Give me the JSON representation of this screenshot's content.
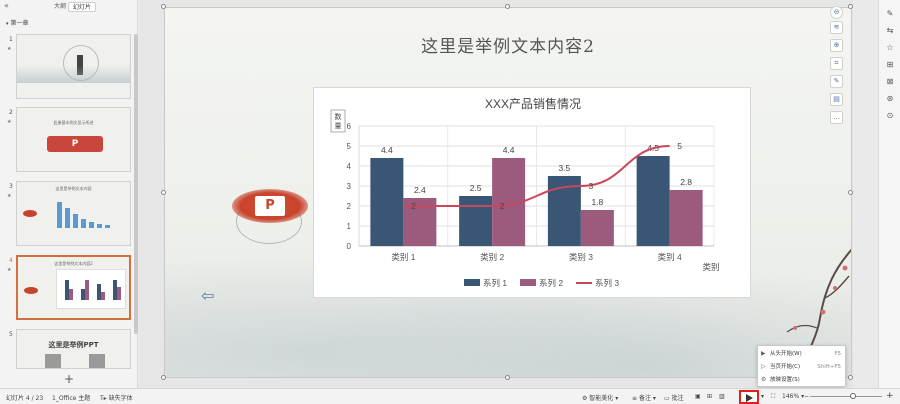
{
  "panel": {
    "tabs": [
      "大纲",
      "幻灯片"
    ],
    "section": "第一章",
    "slides": [
      {
        "num": "1",
        "title": "",
        "star": "★"
      },
      {
        "num": "2",
        "title": "此册基本例文显示所述",
        "logo": "P"
      },
      {
        "num": "3",
        "title": "这里是举例文本内容",
        "star": "★"
      },
      {
        "num": "4",
        "title": "这里是举例文本内容2",
        "star": "★"
      },
      {
        "num": "5",
        "title": "这里是举例PPT"
      }
    ],
    "add": "+"
  },
  "slide": {
    "title": "这里是举例文本内容2",
    "logo_letter": "P",
    "back_arrow": "⇦"
  },
  "chart_data": {
    "type": "bar",
    "title": "XXX产品销售情况",
    "ylabel": "数量",
    "xlabel": "类别",
    "categories": [
      "类别 1",
      "类别 2",
      "类别 3",
      "类别 4"
    ],
    "series": [
      {
        "name": "系列 1",
        "values": [
          4.4,
          2.5,
          3.5,
          4.5
        ],
        "color": "#3a5675"
      },
      {
        "name": "系列 2",
        "values": [
          2.4,
          4.4,
          1.8,
          2.8
        ],
        "color": "#9c5b7c"
      },
      {
        "name": "系列 3",
        "type": "line",
        "values": [
          2,
          2,
          3,
          5
        ],
        "color": "#c9475c"
      }
    ],
    "data_labels": {
      "s1": [
        "4.4",
        "2.5",
        "3.5",
        "4.5"
      ],
      "s2": [
        "2.4",
        "4.4",
        "1.8",
        "2.8"
      ],
      "s3": [
        "2",
        "2",
        "3",
        "5"
      ]
    },
    "ylim": [
      0,
      6
    ],
    "yticks": [
      "0",
      "1",
      "2",
      "3",
      "4",
      "5",
      "6"
    ],
    "grid": true,
    "legend": "bottom"
  },
  "float_tools": [
    "⊖",
    "≋",
    "⊕",
    "⌗",
    "✎",
    "▤",
    "…"
  ],
  "right_tools": [
    "✎",
    "⇆",
    "☆",
    "⊞",
    "⊠",
    "⊛",
    "⊙"
  ],
  "popup": {
    "items": [
      {
        "icon": "▶",
        "label": "从头开始(W)",
        "shortcut": "F5"
      },
      {
        "icon": "▷",
        "label": "当页开始(C)",
        "shortcut": "Shift+F5"
      },
      {
        "icon": "⚙",
        "label": "放映设置(S)",
        "shortcut": ""
      }
    ]
  },
  "status": {
    "slide_info": "幻灯片 4 / 23",
    "theme": "1_Office 主题",
    "font_missing": "缺失字体",
    "smart_beautify": "智能美化",
    "notes": "备注",
    "comments": "批注",
    "zoom": "146%",
    "minus": "−",
    "plus": "+"
  }
}
